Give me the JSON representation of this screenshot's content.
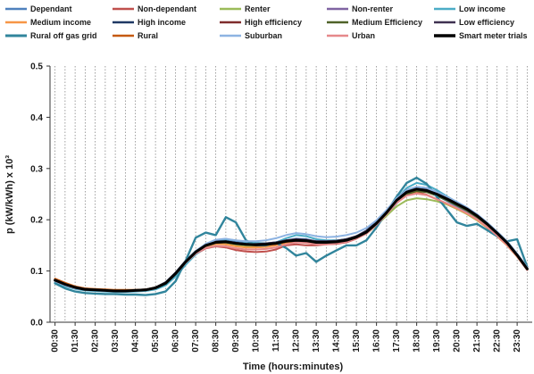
{
  "chart_data": {
    "type": "line",
    "xlabel": "Time (hours:minutes)",
    "ylabel": "p (kW/kWh) x 10³",
    "ylim": [
      0,
      0.5
    ],
    "yticks": [
      "0.0",
      "0.1",
      "0.2",
      "0.3",
      "0.4",
      "0.5"
    ],
    "grid": "vertical dotted lines every half hour",
    "legend_position": "top",
    "x_ticks": [
      "00:30",
      "01:30",
      "02:30",
      "03:30",
      "04:30",
      "05:30",
      "06:30",
      "07:30",
      "08:30",
      "09:30",
      "10:30",
      "11:30",
      "12:30",
      "13:30",
      "14:30",
      "15:30",
      "16:30",
      "17:30",
      "18:30",
      "19:30",
      "20:30",
      "21:30",
      "22:30",
      "23:30"
    ],
    "x": [
      "00:30",
      "01:00",
      "01:30",
      "02:00",
      "02:30",
      "03:00",
      "03:30",
      "04:00",
      "04:30",
      "05:00",
      "05:30",
      "06:00",
      "06:30",
      "07:00",
      "07:30",
      "08:00",
      "08:30",
      "09:00",
      "09:30",
      "10:00",
      "10:30",
      "11:00",
      "11:30",
      "12:00",
      "12:30",
      "13:00",
      "13:30",
      "14:00",
      "14:30",
      "15:00",
      "15:30",
      "16:00",
      "16:30",
      "17:00",
      "17:30",
      "18:00",
      "18:30",
      "19:00",
      "19:30",
      "20:00",
      "20:30",
      "21:00",
      "21:30",
      "22:00",
      "22:30",
      "23:00",
      "23:30",
      "24:00"
    ],
    "series": [
      {
        "name": "Dependant",
        "color": "#4f81bd",
        "width": 2,
        "values": [
          0.08,
          0.072,
          0.066,
          0.063,
          0.062,
          0.061,
          0.06,
          0.06,
          0.061,
          0.062,
          0.066,
          0.076,
          0.095,
          0.117,
          0.136,
          0.15,
          0.158,
          0.16,
          0.157,
          0.154,
          0.153,
          0.153,
          0.155,
          0.16,
          0.163,
          0.162,
          0.158,
          0.157,
          0.158,
          0.161,
          0.166,
          0.175,
          0.19,
          0.21,
          0.232,
          0.25,
          0.258,
          0.255,
          0.247,
          0.237,
          0.226,
          0.215,
          0.202,
          0.187,
          0.17,
          0.152,
          0.13,
          0.105
        ]
      },
      {
        "name": "Non-dependant",
        "color": "#c0504d",
        "width": 2,
        "values": [
          0.082,
          0.074,
          0.067,
          0.064,
          0.063,
          0.062,
          0.061,
          0.061,
          0.062,
          0.063,
          0.067,
          0.075,
          0.092,
          0.115,
          0.133,
          0.144,
          0.148,
          0.146,
          0.141,
          0.138,
          0.137,
          0.138,
          0.142,
          0.15,
          0.152,
          0.15,
          0.15,
          0.152,
          0.153,
          0.156,
          0.163,
          0.174,
          0.192,
          0.213,
          0.236,
          0.251,
          0.254,
          0.249,
          0.24,
          0.231,
          0.222,
          0.212,
          0.2,
          0.185,
          0.168,
          0.15,
          0.128,
          0.102
        ]
      },
      {
        "name": "Renter",
        "color": "#9bbb59",
        "width": 2,
        "values": [
          0.081,
          0.073,
          0.067,
          0.064,
          0.063,
          0.062,
          0.061,
          0.061,
          0.061,
          0.062,
          0.066,
          0.075,
          0.093,
          0.116,
          0.135,
          0.147,
          0.153,
          0.154,
          0.151,
          0.149,
          0.149,
          0.15,
          0.153,
          0.157,
          0.16,
          0.158,
          0.155,
          0.155,
          0.156,
          0.159,
          0.164,
          0.173,
          0.189,
          0.208,
          0.226,
          0.238,
          0.242,
          0.24,
          0.236,
          0.23,
          0.221,
          0.211,
          0.199,
          0.185,
          0.169,
          0.151,
          0.129,
          0.104
        ]
      },
      {
        "name": "Non-renter",
        "color": "#8064a2",
        "width": 2,
        "values": [
          0.082,
          0.074,
          0.067,
          0.064,
          0.063,
          0.062,
          0.061,
          0.061,
          0.062,
          0.063,
          0.067,
          0.076,
          0.095,
          0.118,
          0.137,
          0.15,
          0.157,
          0.158,
          0.155,
          0.153,
          0.153,
          0.154,
          0.156,
          0.16,
          0.162,
          0.161,
          0.158,
          0.157,
          0.158,
          0.161,
          0.167,
          0.177,
          0.193,
          0.214,
          0.238,
          0.254,
          0.26,
          0.258,
          0.25,
          0.24,
          0.23,
          0.219,
          0.206,
          0.191,
          0.173,
          0.154,
          0.131,
          0.105
        ]
      },
      {
        "name": "Low income",
        "color": "#4bacc6",
        "width": 2,
        "values": [
          0.078,
          0.07,
          0.065,
          0.062,
          0.061,
          0.06,
          0.059,
          0.059,
          0.06,
          0.061,
          0.064,
          0.072,
          0.089,
          0.112,
          0.132,
          0.146,
          0.156,
          0.162,
          0.16,
          0.157,
          0.155,
          0.154,
          0.156,
          0.164,
          0.17,
          0.168,
          0.162,
          0.16,
          0.16,
          0.162,
          0.166,
          0.174,
          0.19,
          0.212,
          0.24,
          0.262,
          0.272,
          0.268,
          0.258,
          0.246,
          0.234,
          0.222,
          0.208,
          0.192,
          0.174,
          0.155,
          0.132,
          0.106
        ]
      },
      {
        "name": "Medium income",
        "color": "#f79646",
        "width": 2,
        "values": [
          0.083,
          0.075,
          0.068,
          0.065,
          0.064,
          0.063,
          0.062,
          0.062,
          0.062,
          0.063,
          0.067,
          0.076,
          0.094,
          0.117,
          0.136,
          0.148,
          0.153,
          0.152,
          0.148,
          0.146,
          0.146,
          0.147,
          0.15,
          0.155,
          0.157,
          0.155,
          0.153,
          0.153,
          0.155,
          0.158,
          0.164,
          0.174,
          0.191,
          0.212,
          0.234,
          0.248,
          0.252,
          0.248,
          0.24,
          0.231,
          0.222,
          0.212,
          0.2,
          0.185,
          0.168,
          0.15,
          0.128,
          0.103
        ]
      },
      {
        "name": "High income",
        "color": "#1f3864",
        "width": 2,
        "values": [
          0.084,
          0.076,
          0.069,
          0.066,
          0.064,
          0.063,
          0.062,
          0.062,
          0.063,
          0.064,
          0.068,
          0.078,
          0.097,
          0.12,
          0.139,
          0.152,
          0.158,
          0.158,
          0.155,
          0.153,
          0.152,
          0.153,
          0.155,
          0.159,
          0.161,
          0.16,
          0.158,
          0.158,
          0.159,
          0.162,
          0.168,
          0.179,
          0.196,
          0.218,
          0.242,
          0.258,
          0.264,
          0.262,
          0.254,
          0.244,
          0.234,
          0.223,
          0.21,
          0.194,
          0.176,
          0.157,
          0.133,
          0.106
        ]
      },
      {
        "name": "High efficiency",
        "color": "#7f2c2c",
        "width": 2,
        "values": [
          0.082,
          0.074,
          0.068,
          0.065,
          0.063,
          0.062,
          0.061,
          0.061,
          0.062,
          0.063,
          0.067,
          0.077,
          0.096,
          0.119,
          0.138,
          0.151,
          0.157,
          0.157,
          0.154,
          0.152,
          0.152,
          0.153,
          0.155,
          0.159,
          0.161,
          0.16,
          0.157,
          0.157,
          0.158,
          0.161,
          0.167,
          0.177,
          0.194,
          0.216,
          0.24,
          0.256,
          0.262,
          0.26,
          0.252,
          0.243,
          0.233,
          0.222,
          0.209,
          0.193,
          0.175,
          0.156,
          0.132,
          0.105
        ]
      },
      {
        "name": "Medium Efficiency",
        "color": "#4f6228",
        "width": 2,
        "values": [
          0.081,
          0.073,
          0.067,
          0.064,
          0.063,
          0.062,
          0.061,
          0.061,
          0.061,
          0.062,
          0.066,
          0.075,
          0.094,
          0.117,
          0.136,
          0.149,
          0.155,
          0.156,
          0.153,
          0.151,
          0.151,
          0.152,
          0.154,
          0.158,
          0.16,
          0.159,
          0.156,
          0.156,
          0.157,
          0.16,
          0.165,
          0.175,
          0.191,
          0.212,
          0.235,
          0.25,
          0.256,
          0.254,
          0.247,
          0.238,
          0.228,
          0.218,
          0.205,
          0.19,
          0.172,
          0.153,
          0.13,
          0.104
        ]
      },
      {
        "name": "Low efficiency",
        "color": "#3f3151",
        "width": 2,
        "values": [
          0.083,
          0.075,
          0.068,
          0.065,
          0.064,
          0.063,
          0.062,
          0.062,
          0.062,
          0.063,
          0.067,
          0.077,
          0.096,
          0.119,
          0.138,
          0.151,
          0.157,
          0.158,
          0.155,
          0.153,
          0.153,
          0.154,
          0.156,
          0.16,
          0.162,
          0.161,
          0.158,
          0.158,
          0.159,
          0.162,
          0.168,
          0.178,
          0.195,
          0.216,
          0.24,
          0.256,
          0.262,
          0.26,
          0.253,
          0.244,
          0.234,
          0.223,
          0.21,
          0.194,
          0.176,
          0.157,
          0.133,
          0.106
        ]
      },
      {
        "name": "Rural off gas grid",
        "color": "#31859c",
        "width": 2.4,
        "values": [
          0.076,
          0.066,
          0.06,
          0.057,
          0.056,
          0.055,
          0.055,
          0.054,
          0.054,
          0.053,
          0.055,
          0.06,
          0.08,
          0.12,
          0.165,
          0.175,
          0.17,
          0.205,
          0.195,
          0.16,
          0.15,
          0.15,
          0.155,
          0.145,
          0.13,
          0.135,
          0.118,
          0.13,
          0.14,
          0.15,
          0.15,
          0.16,
          0.185,
          0.215,
          0.245,
          0.272,
          0.282,
          0.27,
          0.245,
          0.22,
          0.195,
          0.188,
          0.192,
          0.18,
          0.168,
          0.158,
          0.162,
          0.108
        ]
      },
      {
        "name": "Rural",
        "color": "#c55a11",
        "width": 2,
        "values": [
          0.085,
          0.077,
          0.07,
          0.066,
          0.065,
          0.064,
          0.063,
          0.063,
          0.063,
          0.064,
          0.068,
          0.077,
          0.095,
          0.118,
          0.137,
          0.15,
          0.156,
          0.157,
          0.154,
          0.151,
          0.15,
          0.151,
          0.153,
          0.157,
          0.159,
          0.158,
          0.156,
          0.156,
          0.157,
          0.16,
          0.166,
          0.176,
          0.193,
          0.214,
          0.237,
          0.253,
          0.259,
          0.257,
          0.25,
          0.241,
          0.231,
          0.221,
          0.208,
          0.192,
          0.174,
          0.155,
          0.131,
          0.104
        ]
      },
      {
        "name": "Suburban",
        "color": "#8db3e2",
        "width": 2,
        "values": [
          0.08,
          0.072,
          0.066,
          0.063,
          0.062,
          0.061,
          0.06,
          0.06,
          0.061,
          0.062,
          0.066,
          0.076,
          0.095,
          0.119,
          0.139,
          0.153,
          0.161,
          0.163,
          0.16,
          0.158,
          0.158,
          0.16,
          0.164,
          0.17,
          0.174,
          0.172,
          0.168,
          0.166,
          0.167,
          0.17,
          0.175,
          0.184,
          0.199,
          0.219,
          0.242,
          0.258,
          0.264,
          0.262,
          0.254,
          0.245,
          0.235,
          0.224,
          0.211,
          0.195,
          0.177,
          0.158,
          0.134,
          0.107
        ]
      },
      {
        "name": "Urban",
        "color": "#e6888a",
        "width": 2,
        "values": [
          0.081,
          0.073,
          0.067,
          0.064,
          0.063,
          0.062,
          0.061,
          0.061,
          0.062,
          0.063,
          0.067,
          0.076,
          0.094,
          0.116,
          0.134,
          0.145,
          0.149,
          0.148,
          0.144,
          0.142,
          0.142,
          0.143,
          0.146,
          0.152,
          0.156,
          0.155,
          0.152,
          0.152,
          0.154,
          0.157,
          0.163,
          0.173,
          0.19,
          0.211,
          0.233,
          0.247,
          0.251,
          0.248,
          0.24,
          0.232,
          0.223,
          0.213,
          0.201,
          0.186,
          0.169,
          0.151,
          0.129,
          0.103
        ]
      },
      {
        "name": "Smart meter trials",
        "color": "#000000",
        "width": 3,
        "values": [
          0.082,
          0.074,
          0.068,
          0.064,
          0.063,
          0.062,
          0.061,
          0.061,
          0.062,
          0.063,
          0.067,
          0.076,
          0.095,
          0.118,
          0.137,
          0.15,
          0.156,
          0.157,
          0.154,
          0.152,
          0.151,
          0.152,
          0.154,
          0.158,
          0.16,
          0.159,
          0.156,
          0.156,
          0.157,
          0.16,
          0.166,
          0.176,
          0.193,
          0.214,
          0.238,
          0.254,
          0.26,
          0.257,
          0.25,
          0.241,
          0.231,
          0.221,
          0.208,
          0.192,
          0.174,
          0.155,
          0.131,
          0.104
        ]
      }
    ]
  }
}
